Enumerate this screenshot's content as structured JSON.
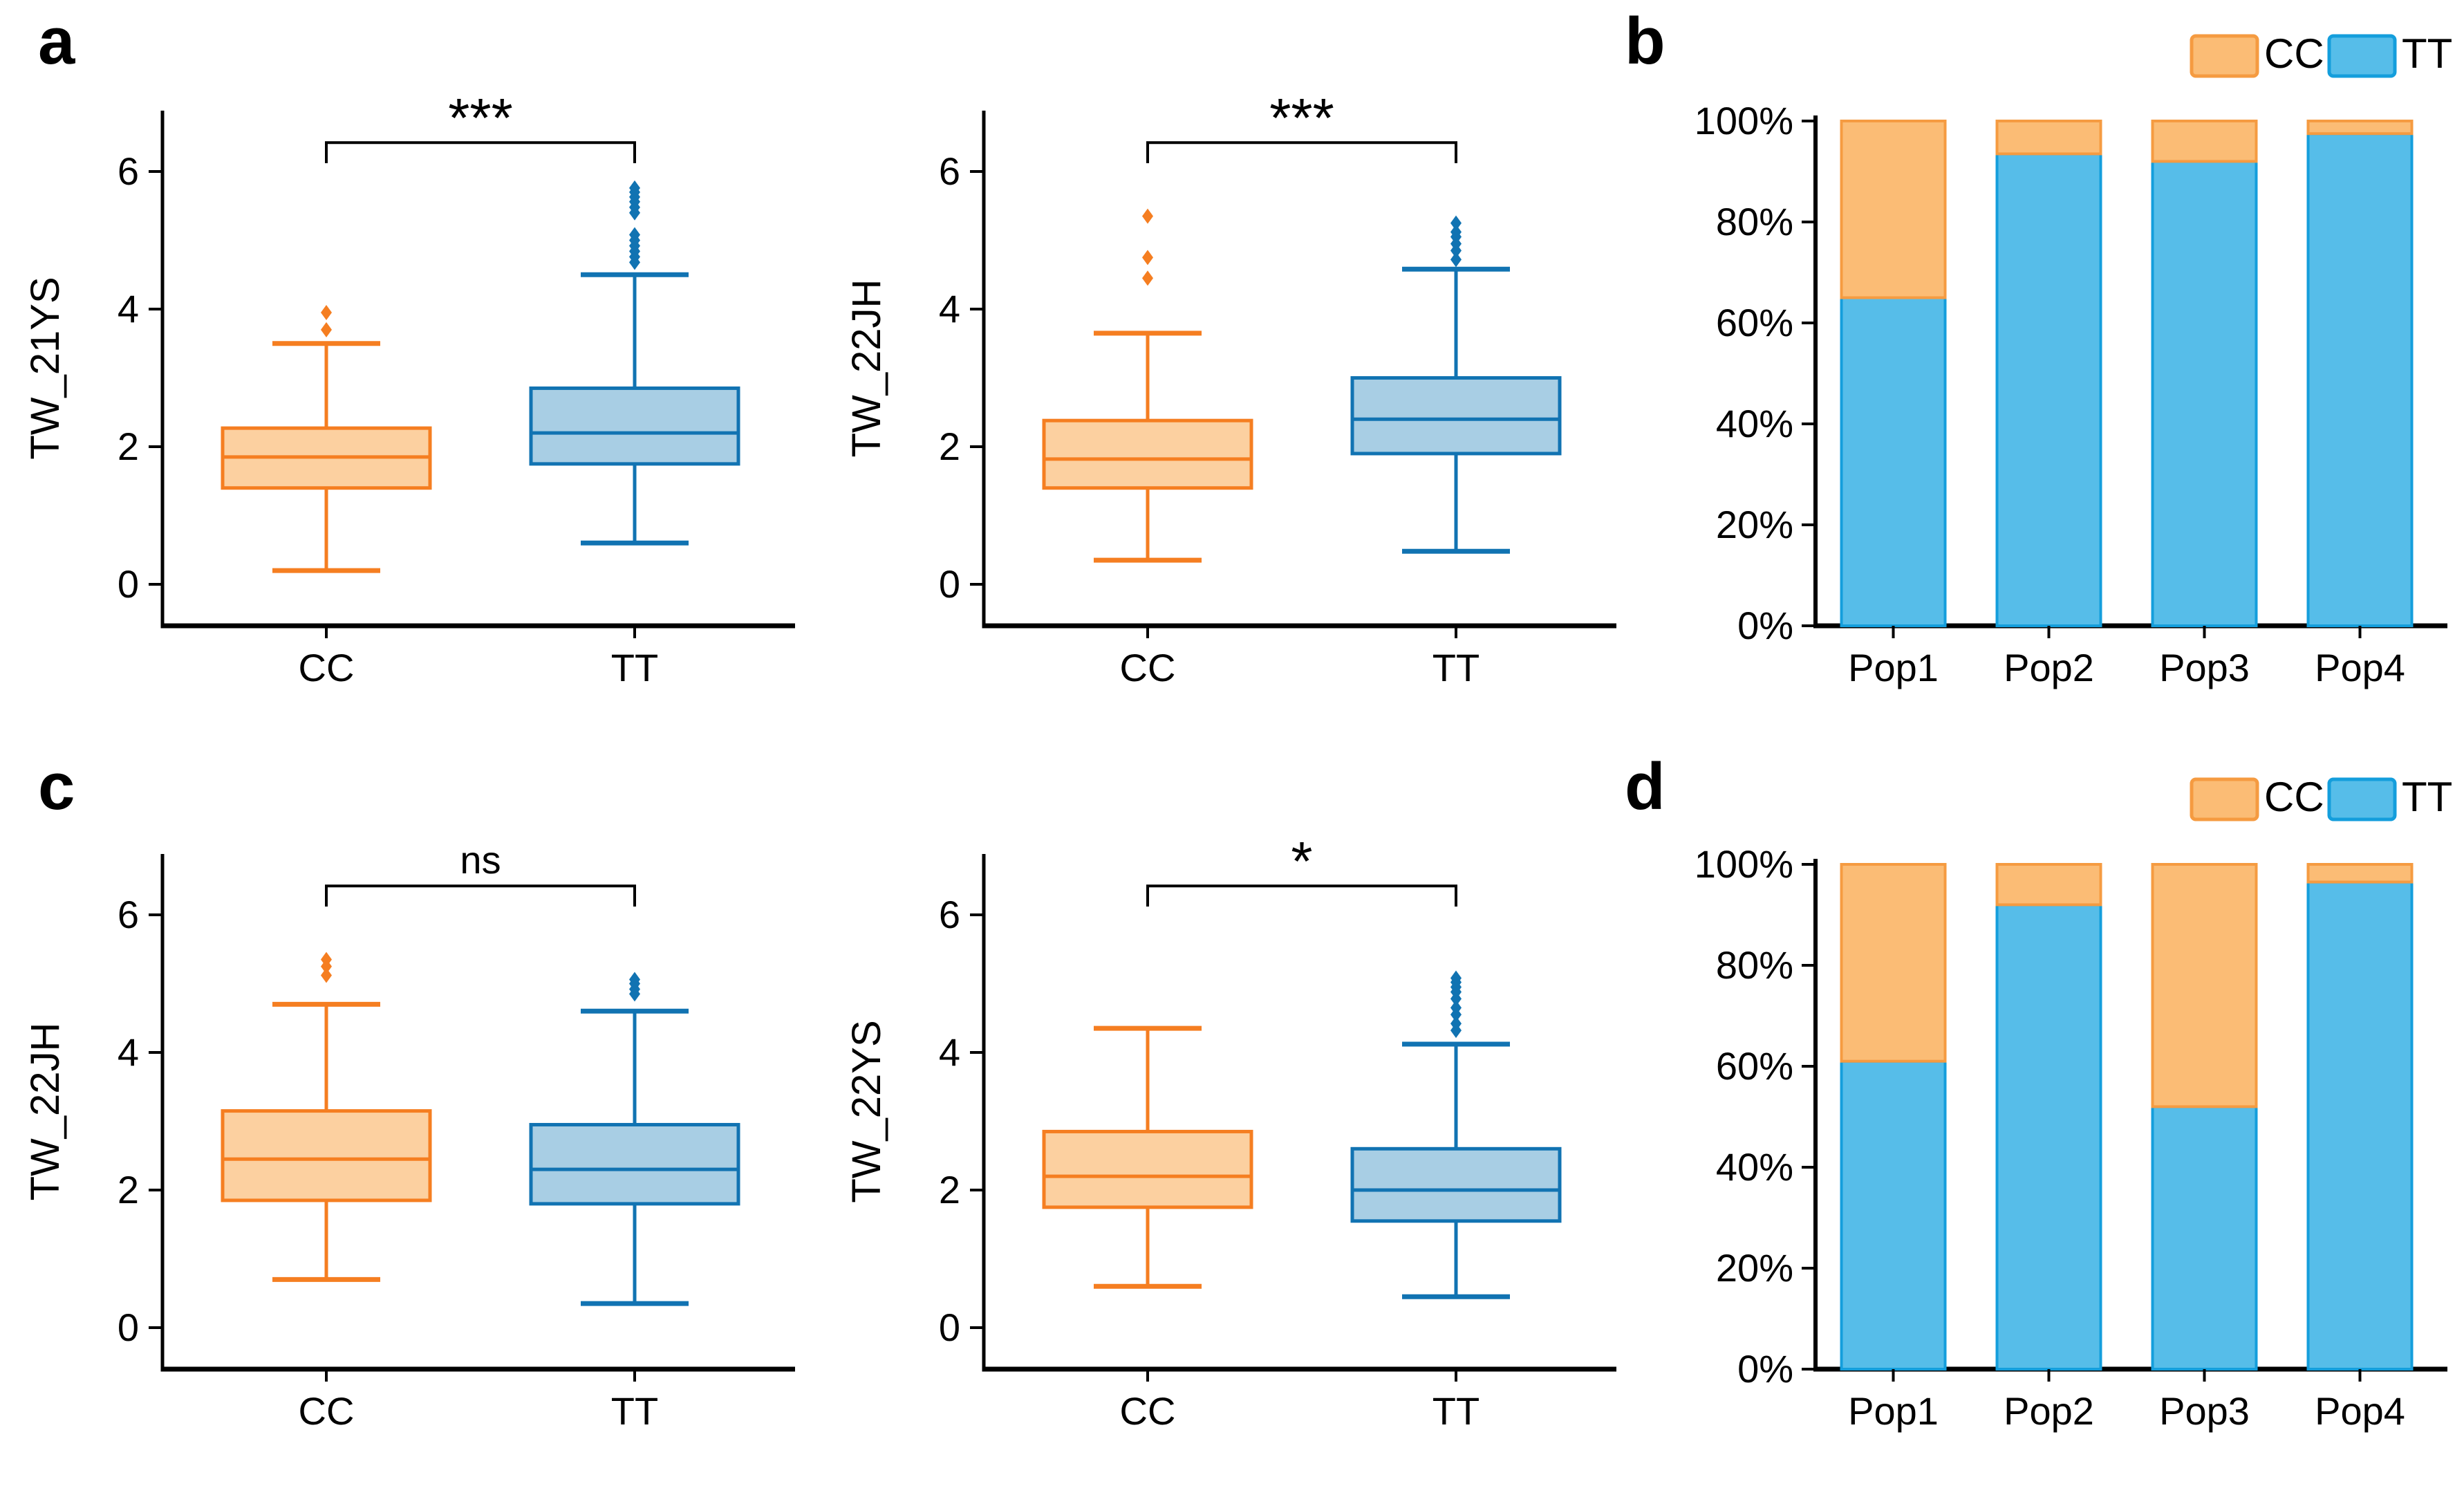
{
  "figure": {
    "background": "#ffffff",
    "panel_letters": {
      "a": "a",
      "b": "b",
      "c": "c",
      "d": "d"
    },
    "colors": {
      "box_orange_edge": "#F57E21",
      "box_orange_fill": "#FCD0A0",
      "box_blue_edge": "#1173B2",
      "box_blue_fill": "#A8CEE4",
      "bar_orange_edge": "#F59B41",
      "bar_orange_fill": "#FBBC75",
      "bar_blue_edge": "#149EDC",
      "bar_blue_fill": "#56BDE9",
      "text": "#000000",
      "axis": "#000000"
    }
  },
  "legend": {
    "cc_label": "CC",
    "tt_label": "TT"
  },
  "chart_data": [
    {
      "id": "box-a1",
      "panel": "a",
      "type": "box",
      "ylabel": "TW_21YS",
      "ylim": [
        -0.6,
        6.9
      ],
      "yticks": [
        0,
        2,
        4,
        6
      ],
      "significance": "***",
      "groups": [
        {
          "label": "CC",
          "color": "orange",
          "whislo": 0.2,
          "q1": 1.4,
          "med": 1.85,
          "q3": 2.27,
          "whishi": 3.5,
          "outliers": [
            3.7,
            3.95
          ]
        },
        {
          "label": "TT",
          "color": "blue",
          "whislo": 0.6,
          "q1": 1.75,
          "med": 2.2,
          "q3": 2.85,
          "whishi": 4.5,
          "outliers": [
            4.68,
            4.76,
            4.84,
            4.92,
            5.0,
            5.08,
            5.4,
            5.48,
            5.56,
            5.63,
            5.7,
            5.76
          ]
        }
      ]
    },
    {
      "id": "box-a2",
      "panel": "a",
      "type": "box",
      "ylabel": "TW_22JH",
      "ylim": [
        -0.6,
        6.9
      ],
      "yticks": [
        0,
        2,
        4,
        6
      ],
      "significance": "***",
      "groups": [
        {
          "label": "CC",
          "color": "orange",
          "whislo": 0.35,
          "q1": 1.4,
          "med": 1.82,
          "q3": 2.38,
          "whishi": 3.65,
          "outliers": [
            4.45,
            4.75,
            5.35
          ]
        },
        {
          "label": "TT",
          "color": "blue",
          "whislo": 0.48,
          "q1": 1.9,
          "med": 2.4,
          "q3": 3.0,
          "whishi": 4.58,
          "outliers": [
            4.72,
            4.85,
            4.95,
            5.05,
            5.12,
            5.25
          ]
        }
      ]
    },
    {
      "id": "bars-b",
      "panel": "b",
      "type": "stacked-bar",
      "categories": [
        "Pop1",
        "Pop2",
        "Pop3",
        "Pop4"
      ],
      "ylim": [
        0,
        100
      ],
      "ytick_values": [
        0,
        20,
        40,
        60,
        80,
        100
      ],
      "ytick_labels": [
        "0%",
        "20%",
        "40%",
        "60%",
        "80%",
        "100%"
      ],
      "series": [
        {
          "name": "TT",
          "color": "blue",
          "values": [
            65,
            93.5,
            92,
            97.5
          ]
        },
        {
          "name": "CC",
          "color": "orange",
          "values": [
            35,
            6.5,
            8,
            2.5
          ]
        }
      ]
    },
    {
      "id": "box-c1",
      "panel": "c",
      "type": "box",
      "ylabel": "TW_22JH",
      "ylim": [
        -0.6,
        6.9
      ],
      "yticks": [
        0,
        2,
        4,
        6
      ],
      "significance": "ns",
      "groups": [
        {
          "label": "CC",
          "color": "orange",
          "whislo": 0.7,
          "q1": 1.85,
          "med": 2.45,
          "q3": 3.15,
          "whishi": 4.7,
          "outliers": [
            5.12,
            5.25,
            5.35
          ]
        },
        {
          "label": "TT",
          "color": "blue",
          "whislo": 0.35,
          "q1": 1.8,
          "med": 2.3,
          "q3": 2.95,
          "whishi": 4.6,
          "outliers": [
            4.85,
            4.92,
            5.0,
            5.06
          ]
        }
      ]
    },
    {
      "id": "box-c2",
      "panel": "c",
      "type": "box",
      "ylabel": "TW_22YS",
      "ylim": [
        -0.6,
        6.9
      ],
      "yticks": [
        0,
        2,
        4,
        6
      ],
      "significance": "*",
      "groups": [
        {
          "label": "CC",
          "color": "orange",
          "whislo": 0.6,
          "q1": 1.75,
          "med": 2.2,
          "q3": 2.85,
          "whishi": 4.35,
          "outliers": []
        },
        {
          "label": "TT",
          "color": "blue",
          "whislo": 0.45,
          "q1": 1.55,
          "med": 2.0,
          "q3": 2.6,
          "whishi": 4.12,
          "outliers": [
            4.32,
            4.42,
            4.55,
            4.65,
            4.78,
            4.88,
            4.95,
            5.02,
            5.08
          ]
        }
      ]
    },
    {
      "id": "bars-d",
      "panel": "d",
      "type": "stacked-bar",
      "categories": [
        "Pop1",
        "Pop2",
        "Pop3",
        "Pop4"
      ],
      "ylim": [
        0,
        100
      ],
      "ytick_values": [
        0,
        20,
        40,
        60,
        80,
        100
      ],
      "ytick_labels": [
        "0%",
        "20%",
        "40%",
        "60%",
        "80%",
        "100%"
      ],
      "series": [
        {
          "name": "TT",
          "color": "blue",
          "values": [
            61,
            92,
            52,
            96.5
          ]
        },
        {
          "name": "CC",
          "color": "orange",
          "values": [
            39,
            8,
            48,
            3.5
          ]
        }
      ]
    }
  ]
}
